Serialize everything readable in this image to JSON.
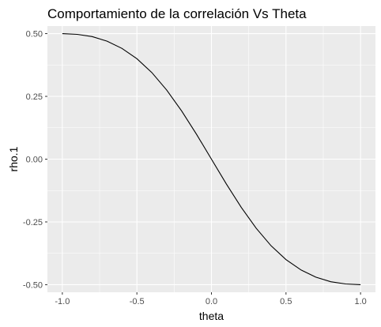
{
  "chart_data": {
    "type": "line",
    "title": "Comportamiento de la correlación Vs Theta",
    "xlabel": "theta",
    "ylabel": "rho.1",
    "xlim": [
      -1.1,
      1.1
    ],
    "ylim": [
      -0.53,
      0.53
    ],
    "x_ticks": [
      -1.0,
      -0.5,
      0.0,
      0.5,
      1.0
    ],
    "x_tick_labels": [
      "-1.0",
      "-0.5",
      "0.0",
      "0.5",
      "1.0"
    ],
    "y_ticks": [
      -0.5,
      -0.25,
      0.0,
      0.25,
      0.5
    ],
    "y_tick_labels": [
      "-0.50",
      "-0.25",
      "0.00",
      "0.25",
      "0.50"
    ],
    "grid": true,
    "series": [
      {
        "color": "#000000",
        "x": [
          -1.0,
          -0.9,
          -0.8,
          -0.7,
          -0.6,
          -0.5,
          -0.4,
          -0.3,
          -0.2,
          -0.1,
          0.0,
          0.1,
          0.2,
          0.3,
          0.4,
          0.5,
          0.6,
          0.7,
          0.8,
          0.9,
          1.0
        ],
        "y": [
          0.5,
          0.497,
          0.488,
          0.47,
          0.441,
          0.4,
          0.345,
          0.275,
          0.192,
          0.099,
          0.0,
          -0.099,
          -0.192,
          -0.275,
          -0.345,
          -0.4,
          -0.441,
          -0.47,
          -0.488,
          -0.497,
          -0.5
        ]
      }
    ]
  }
}
